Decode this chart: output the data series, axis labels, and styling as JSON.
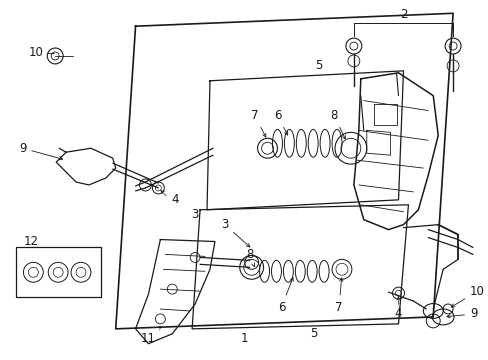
{
  "bg_color": "#ffffff",
  "line_color": "#1a1a1a",
  "figsize": [
    4.89,
    3.6
  ],
  "dpi": 100,
  "outer_box": {
    "x": [
      0.145,
      0.935,
      0.855,
      0.065,
      0.145
    ],
    "y": [
      0.88,
      0.88,
      0.08,
      0.08,
      0.88
    ]
  },
  "upper_inner_box": {
    "x": [
      0.255,
      0.625,
      0.58,
      0.21,
      0.255
    ],
    "y": [
      0.75,
      0.75,
      0.42,
      0.42,
      0.75
    ]
  },
  "lower_inner_box": {
    "x": [
      0.245,
      0.605,
      0.555,
      0.195,
      0.245
    ],
    "y": [
      0.42,
      0.42,
      0.12,
      0.12,
      0.42
    ]
  }
}
